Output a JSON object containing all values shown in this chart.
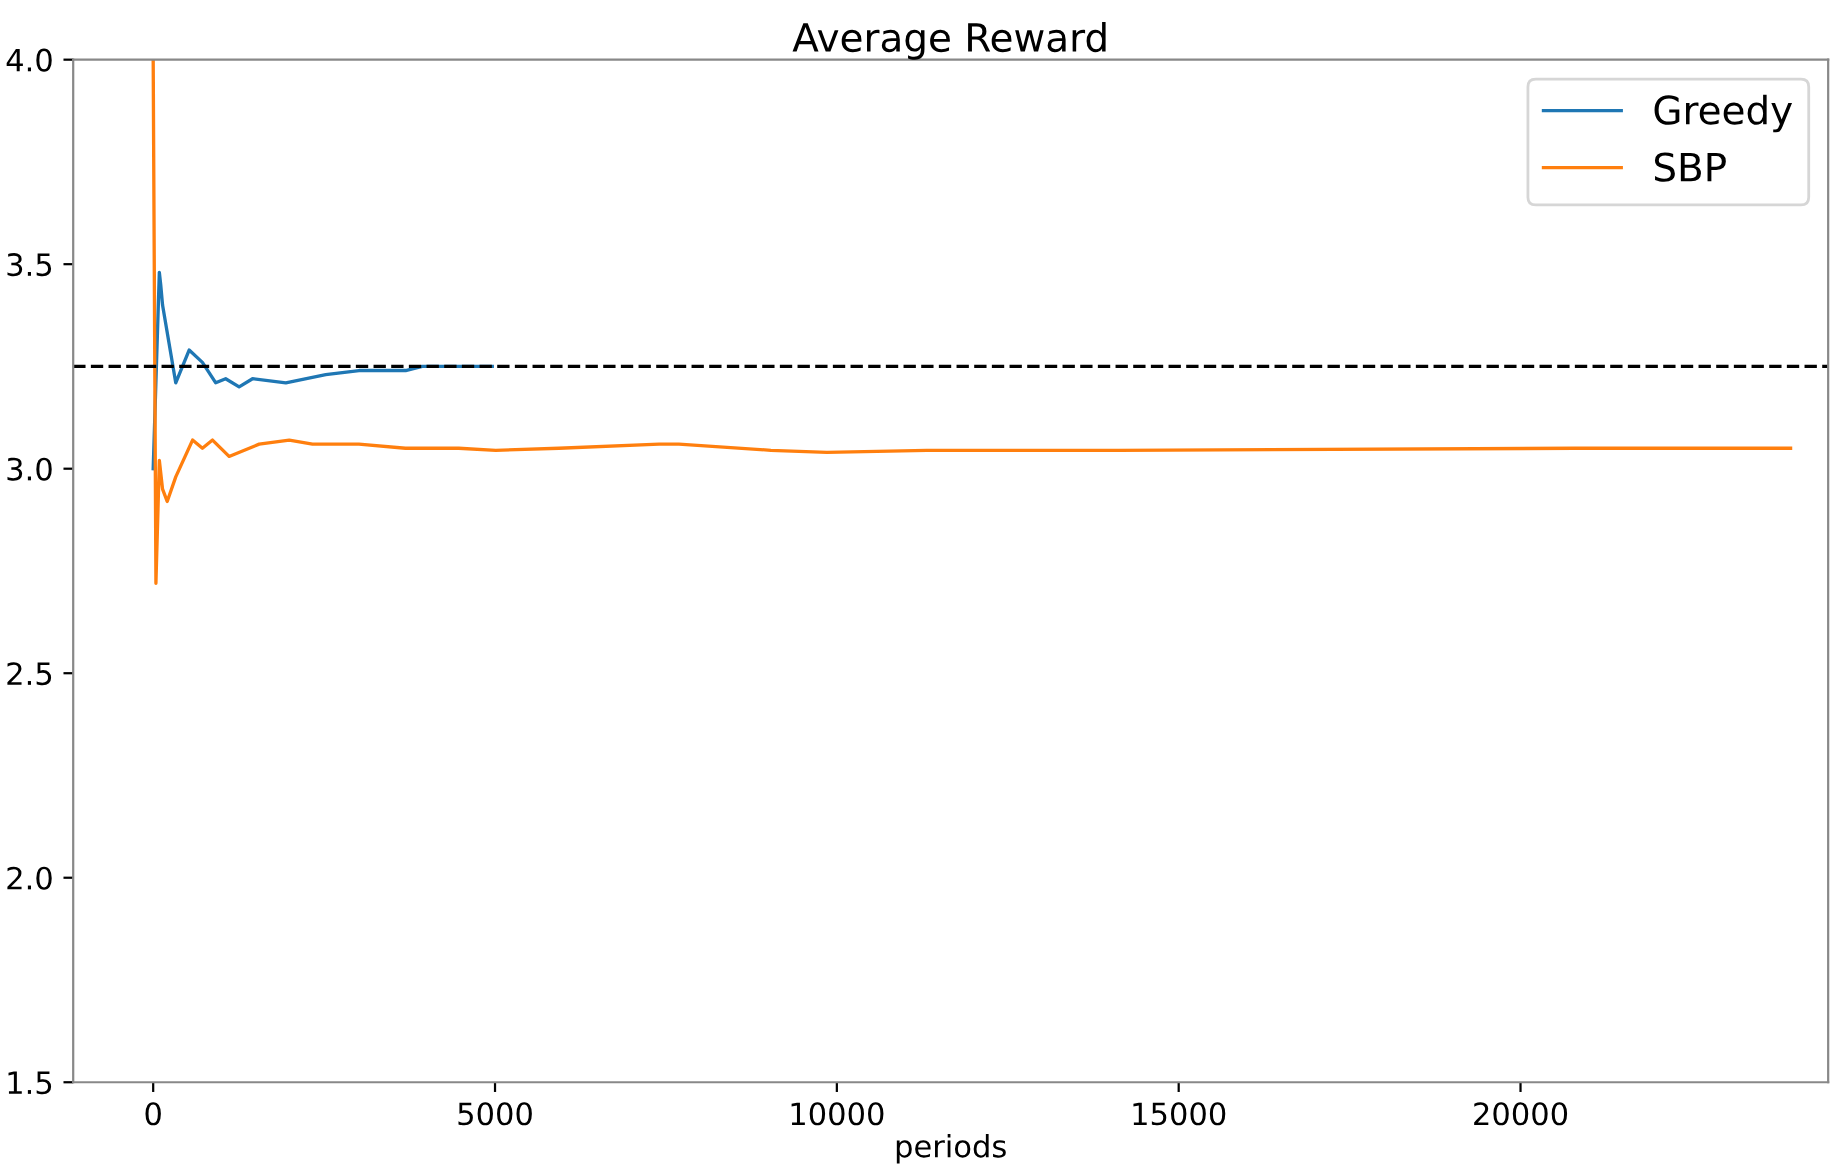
{
  "chart_data": {
    "type": "line",
    "title": "Average Reward",
    "xlabel": "periods",
    "series": [
      {
        "name": "Greedy",
        "color": "#1f77b4",
        "x": [
          0,
          90,
          110,
          137,
          330,
          526,
          720,
          915,
          1060,
          1257,
          1453,
          1940,
          2524,
          3010,
          3693,
          3936,
          4960
        ],
        "values": [
          3.0,
          3.48,
          3.45,
          3.4,
          3.21,
          3.29,
          3.26,
          3.21,
          3.22,
          3.2,
          3.22,
          3.21,
          3.23,
          3.24,
          3.24,
          3.25,
          3.25
        ]
      },
      {
        "name": "SBP",
        "color": "#ff7f0e",
        "x": [
          0,
          40,
          90,
          137,
          205,
          330,
          576,
          720,
          868,
          1110,
          1550,
          1990,
          2330,
          3010,
          3690,
          4470,
          5010,
          5935,
          7400,
          7690,
          9035,
          9855,
          11316,
          14120,
          20790,
          23950
        ],
        "values": [
          4.0,
          2.72,
          3.02,
          2.95,
          2.92,
          2.98,
          3.07,
          3.05,
          3.07,
          3.03,
          3.06,
          3.07,
          3.06,
          3.06,
          3.05,
          3.05,
          3.045,
          3.05,
          3.06,
          3.06,
          3.045,
          3.04,
          3.045,
          3.045,
          3.05,
          3.05
        ]
      }
    ],
    "xlim": [
      -1170,
      24500
    ],
    "ylim": [
      1.5,
      4.0
    ],
    "xticks": [
      0,
      5000,
      10000,
      15000,
      20000
    ],
    "yticks": [
      {
        "value": 1.5,
        "label": "1.5"
      },
      {
        "value": 2.0,
        "label": "2.0"
      },
      {
        "value": 2.5,
        "label": "2.5"
      },
      {
        "value": 3.0,
        "label": "3.0"
      },
      {
        "value": 3.5,
        "label": "3.5"
      },
      {
        "value": 4.0,
        "label": "4.0"
      }
    ],
    "ref_lines": [
      {
        "axis": "y",
        "value": 3.25,
        "color": "#000000",
        "line_style": "dashed"
      }
    ],
    "legend": "top right",
    "grid": false,
    "line_style": "solid"
  }
}
